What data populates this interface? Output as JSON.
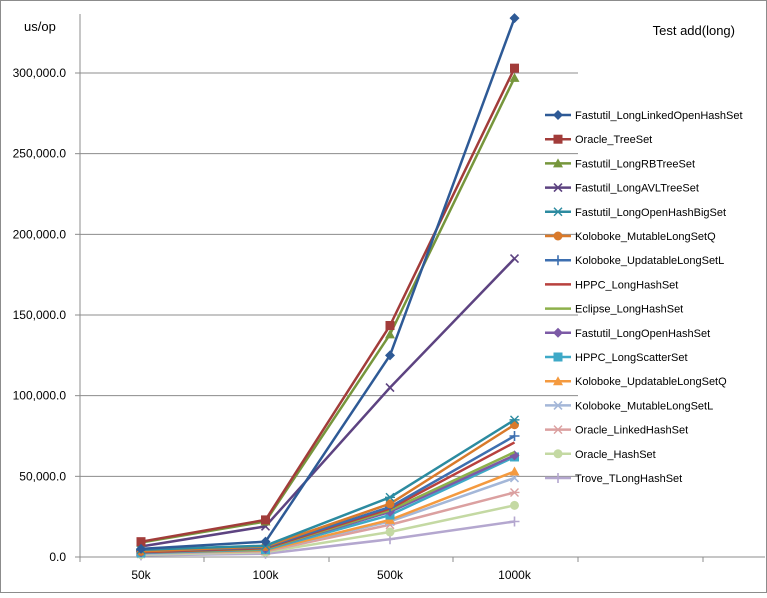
{
  "chart_data": {
    "type": "line",
    "title": "Test add(long)",
    "ylabel": "us/op",
    "xlabel": "",
    "categories": [
      "50k",
      "100k",
      "500k",
      "1000k"
    ],
    "ylim": [
      0,
      300000
    ],
    "yticks": [
      0,
      50000,
      100000,
      150000,
      200000,
      250000,
      300000
    ],
    "ytick_labels": [
      "0.0",
      "50,000.0",
      "100,000.0",
      "150,000.0",
      "200,000.0",
      "250,000.0",
      "300,000.0"
    ],
    "grid": "horizontal",
    "legend_position": "right",
    "series": [
      {
        "name": "Fastutil_LongLinkedOpenHashSet",
        "color": "#2e5a96",
        "marker": "diamond",
        "values": [
          5000,
          9500,
          125000,
          334000
        ]
      },
      {
        "name": "Oracle_TreeSet",
        "color": "#a23c3a",
        "marker": "square",
        "values": [
          9500,
          23000,
          143500,
          303000
        ]
      },
      {
        "name": "Fastutil_LongRBTreeSet",
        "color": "#76963c",
        "marker": "triangle",
        "values": [
          9000,
          22000,
          138000,
          297000
        ]
      },
      {
        "name": "Fastutil_LongAVLTreeSet",
        "color": "#5d4381",
        "marker": "x",
        "values": [
          6500,
          19000,
          105000,
          185000
        ]
      },
      {
        "name": "Fastutil_LongOpenHashBigSet",
        "color": "#2c8ba0",
        "marker": "asterisk",
        "values": [
          4500,
          7000,
          37000,
          85000
        ]
      },
      {
        "name": "Koloboke_MutableLongSetQ",
        "color": "#d97a2b",
        "marker": "circle",
        "values": [
          3500,
          6500,
          33000,
          82000
        ]
      },
      {
        "name": "Koloboke_UpdatableLongSetL",
        "color": "#3d6fb0",
        "marker": "plus",
        "values": [
          3500,
          6000,
          31000,
          75000
        ]
      },
      {
        "name": "HPPC_LongHashSet",
        "color": "#b8413e",
        "marker": "none",
        "values": [
          3000,
          5500,
          30000,
          71000
        ]
      },
      {
        "name": "Eclipse_LongHashSet",
        "color": "#8db04b",
        "marker": "none",
        "values": [
          3000,
          5000,
          29000,
          65000
        ]
      },
      {
        "name": "Fastutil_LongOpenHashSet",
        "color": "#7c5aa6",
        "marker": "diamond",
        "values": [
          2800,
          5000,
          28000,
          63000
        ]
      },
      {
        "name": "HPPC_LongScatterSet",
        "color": "#3ea9c7",
        "marker": "square",
        "values": [
          2500,
          4500,
          26000,
          62000
        ]
      },
      {
        "name": "Koloboke_UpdatableLongSetQ",
        "color": "#f49a3f",
        "marker": "triangle",
        "values": [
          2500,
          4000,
          23000,
          53000
        ]
      },
      {
        "name": "Koloboke_MutableLongSetL",
        "color": "#a4b7d8",
        "marker": "x",
        "values": [
          2000,
          4000,
          22000,
          49000
        ]
      },
      {
        "name": "Oracle_LinkedHashSet",
        "color": "#dba0a0",
        "marker": "asterisk",
        "values": [
          2000,
          3500,
          20000,
          40000
        ]
      },
      {
        "name": "Oracle_HashSet",
        "color": "#c4d9a3",
        "marker": "circle",
        "values": [
          1500,
          3000,
          15500,
          32000
        ]
      },
      {
        "name": "Trove_TLongHashSet",
        "color": "#b4a7cf",
        "marker": "plus",
        "values": [
          1000,
          2000,
          11000,
          22000
        ]
      }
    ]
  }
}
